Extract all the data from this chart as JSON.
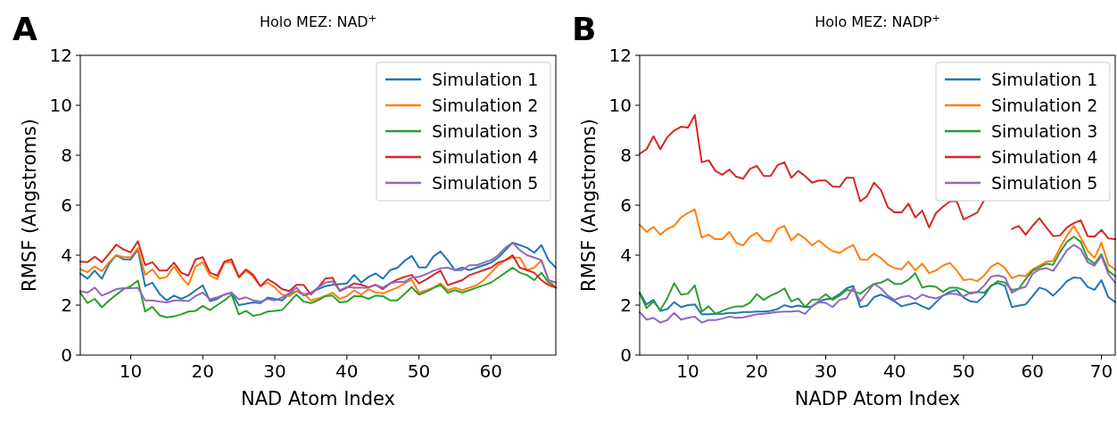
{
  "chart_data": [
    {
      "type": "line",
      "title": "Holo MEZ: NAD$^{+}$",
      "xlabel": "NAD Atom Index",
      "ylabel": "RMSF (Angstroms)",
      "annotations": [
        "A"
      ],
      "xlim": [
        3,
        69
      ],
      "ylim": [
        0,
        12
      ],
      "xticks": [
        10,
        20,
        30,
        40,
        50,
        60
      ],
      "yticks": [
        0,
        2,
        4,
        6,
        8,
        10,
        12
      ],
      "legend": "top right",
      "line_style": "solid",
      "x": [
        3,
        4,
        5,
        6,
        7,
        8,
        9,
        10,
        11,
        12,
        13,
        14,
        15,
        16,
        17,
        18,
        19,
        20,
        21,
        22,
        23,
        24,
        25,
        26,
        27,
        28,
        29,
        30,
        31,
        32,
        33,
        34,
        35,
        36,
        37,
        38,
        39,
        40,
        41,
        42,
        43,
        44,
        45,
        46,
        47,
        48,
        49,
        50,
        51,
        52,
        53,
        54,
        55,
        56,
        57,
        58,
        59,
        60,
        61,
        62,
        63,
        64,
        65,
        66,
        67,
        68,
        69
      ],
      "series": [
        {
          "name": "Simulation 1",
          "color": "#1f77b4",
          "values": [
            3.27,
            3.06,
            3.38,
            3.06,
            3.66,
            4.0,
            3.83,
            3.83,
            4.23,
            2.76,
            2.9,
            2.45,
            2.19,
            2.38,
            2.25,
            2.38,
            2.59,
            2.79,
            2.16,
            2.25,
            2.42,
            2.5,
            2.0,
            2.05,
            2.11,
            2.08,
            2.3,
            2.25,
            2.19,
            2.45,
            2.56,
            2.42,
            2.5,
            2.64,
            2.76,
            2.81,
            2.84,
            2.87,
            3.21,
            2.9,
            3.13,
            3.27,
            3.06,
            3.4,
            3.49,
            3.77,
            3.97,
            3.51,
            3.51,
            3.94,
            4.15,
            3.8,
            3.4,
            3.5,
            3.4,
            3.5,
            3.6,
            3.7,
            3.9,
            4.2,
            4.5,
            4.4,
            4.3,
            4.1,
            4.4,
            3.8,
            3.5
          ]
        },
        {
          "name": "Simulation 2",
          "color": "#ff7f0e",
          "values": [
            3.43,
            3.32,
            3.55,
            3.36,
            3.72,
            4.0,
            3.92,
            3.92,
            4.28,
            3.21,
            3.43,
            3.06,
            3.13,
            3.55,
            3.13,
            2.81,
            3.55,
            3.72,
            3.18,
            3.04,
            3.7,
            3.72,
            3.1,
            3.38,
            3.13,
            2.76,
            2.9,
            2.7,
            2.42,
            2.36,
            2.56,
            2.47,
            2.19,
            2.27,
            2.36,
            2.5,
            2.25,
            2.36,
            2.59,
            2.42,
            2.64,
            2.5,
            2.47,
            2.59,
            2.7,
            2.87,
            3.02,
            2.5,
            2.59,
            2.7,
            2.87,
            2.6,
            2.7,
            2.6,
            2.7,
            2.8,
            3.0,
            3.3,
            3.6,
            3.8,
            3.9,
            3.9,
            3.4,
            3.5,
            3.8,
            3.0,
            2.7
          ]
        },
        {
          "name": "Simulation 3",
          "color": "#2ca02c",
          "values": [
            2.5,
            2.08,
            2.25,
            1.91,
            2.19,
            2.42,
            2.64,
            2.76,
            2.98,
            1.74,
            1.93,
            1.59,
            1.51,
            1.55,
            1.63,
            1.74,
            1.77,
            1.97,
            1.8,
            2.0,
            2.19,
            2.42,
            1.63,
            1.77,
            1.57,
            1.63,
            1.74,
            1.77,
            1.8,
            2.11,
            2.42,
            2.14,
            2.08,
            2.19,
            2.36,
            2.38,
            2.11,
            2.14,
            2.36,
            2.36,
            2.25,
            2.38,
            2.36,
            2.19,
            2.19,
            2.45,
            2.72,
            2.42,
            2.53,
            2.68,
            2.81,
            2.5,
            2.6,
            2.5,
            2.6,
            2.7,
            2.8,
            2.9,
            3.1,
            3.3,
            3.5,
            3.3,
            3.2,
            3.0,
            3.3,
            2.9,
            2.7
          ]
        },
        {
          "name": "Simulation 4",
          "color": "#d62728",
          "values": [
            3.74,
            3.72,
            3.94,
            3.72,
            4.06,
            4.42,
            4.23,
            4.11,
            4.56,
            3.6,
            3.72,
            3.38,
            3.38,
            3.7,
            3.3,
            3.18,
            3.83,
            3.92,
            3.3,
            3.18,
            3.74,
            3.83,
            3.13,
            3.43,
            3.21,
            2.76,
            3.04,
            2.87,
            2.64,
            2.56,
            2.81,
            2.81,
            2.42,
            2.7,
            3.06,
            3.1,
            2.56,
            2.7,
            2.87,
            2.81,
            2.72,
            2.81,
            2.64,
            2.87,
            3.02,
            3.13,
            3.21,
            2.87,
            3.02,
            3.21,
            3.38,
            2.8,
            2.9,
            3.0,
            3.2,
            3.3,
            3.4,
            3.5,
            3.7,
            3.8,
            4.0,
            3.5,
            3.4,
            3.3,
            3.0,
            2.8,
            2.7
          ]
        },
        {
          "name": "Simulation 5",
          "color": "#9467bd",
          "values": [
            2.56,
            2.5,
            2.7,
            2.38,
            2.5,
            2.64,
            2.68,
            2.68,
            2.7,
            2.19,
            2.19,
            2.14,
            2.11,
            2.19,
            2.19,
            2.16,
            2.36,
            2.5,
            2.23,
            2.31,
            2.42,
            2.5,
            2.23,
            2.31,
            2.19,
            2.14,
            2.25,
            2.19,
            2.31,
            2.47,
            2.7,
            2.38,
            2.47,
            2.7,
            2.9,
            2.95,
            2.59,
            2.72,
            2.7,
            2.7,
            2.7,
            2.81,
            2.7,
            2.87,
            2.93,
            2.93,
            3.1,
            3.13,
            3.24,
            3.38,
            3.47,
            3.5,
            3.4,
            3.4,
            3.6,
            3.6,
            3.7,
            3.8,
            4.0,
            4.3,
            4.5,
            4.2,
            4.0,
            3.9,
            3.8,
            3.0,
            2.9
          ]
        }
      ]
    },
    {
      "type": "line",
      "title": "Holo MEZ: NADP$^{+}$",
      "xlabel": "NADP Atom Index",
      "ylabel": "RMSF (Angstroms)",
      "annotations": [
        "B"
      ],
      "xlim": [
        3,
        72
      ],
      "ylim": [
        0,
        12
      ],
      "xticks": [
        10,
        20,
        30,
        40,
        50,
        60,
        70
      ],
      "yticks": [
        0,
        2,
        4,
        6,
        8,
        10,
        12
      ],
      "legend": "top right",
      "line_style": "solid",
      "x": [
        3,
        4,
        5,
        6,
        7,
        8,
        9,
        10,
        11,
        12,
        13,
        14,
        15,
        16,
        17,
        18,
        19,
        20,
        21,
        22,
        23,
        24,
        25,
        26,
        27,
        28,
        29,
        30,
        31,
        32,
        33,
        34,
        35,
        36,
        37,
        38,
        39,
        40,
        41,
        42,
        43,
        44,
        45,
        46,
        47,
        48,
        49,
        50,
        51,
        52,
        53,
        54,
        55,
        56,
        57,
        58,
        59,
        60,
        61,
        62,
        63,
        64,
        65,
        66,
        67,
        68,
        69,
        70,
        71,
        72
      ],
      "series": [
        {
          "name": "Simulation 1",
          "color": "#1f77b4",
          "values": [
            2.5,
            2.03,
            2.21,
            1.77,
            1.84,
            2.12,
            1.92,
            2.0,
            2.03,
            1.63,
            1.63,
            1.65,
            1.65,
            1.69,
            1.69,
            1.72,
            1.72,
            1.74,
            1.74,
            1.77,
            1.84,
            2.0,
            1.92,
            1.98,
            1.92,
            1.95,
            2.15,
            2.23,
            2.27,
            2.44,
            2.67,
            2.77,
            1.92,
            1.98,
            2.32,
            2.42,
            2.3,
            2.15,
            1.95,
            2.03,
            2.09,
            1.95,
            1.84,
            2.12,
            2.38,
            2.53,
            2.61,
            2.3,
            2.15,
            2.12,
            2.38,
            2.79,
            2.88,
            2.77,
            1.92,
            1.98,
            2.03,
            2.35,
            2.7,
            2.61,
            2.38,
            2.65,
            2.96,
            3.11,
            3.08,
            2.73,
            2.61,
            3.0,
            2.32,
            2.12
          ]
        },
        {
          "name": "Simulation 2",
          "color": "#ff7f0e",
          "values": [
            5.22,
            4.93,
            5.13,
            4.82,
            5.05,
            5.17,
            5.51,
            5.69,
            5.83,
            4.7,
            4.82,
            4.64,
            4.64,
            4.93,
            4.5,
            4.39,
            4.74,
            4.9,
            4.59,
            4.55,
            5.05,
            5.17,
            4.59,
            4.85,
            4.67,
            4.39,
            4.59,
            4.35,
            4.16,
            4.09,
            4.27,
            4.41,
            3.83,
            3.81,
            4.06,
            3.89,
            3.62,
            3.48,
            3.43,
            3.74,
            3.39,
            3.66,
            3.28,
            3.39,
            3.58,
            3.69,
            3.39,
            3.0,
            3.04,
            2.96,
            3.19,
            3.54,
            3.69,
            3.48,
            3.08,
            3.19,
            3.16,
            3.43,
            3.58,
            3.74,
            3.77,
            4.3,
            4.78,
            5.17,
            4.7,
            4.18,
            3.89,
            4.5,
            3.62,
            3.43
          ]
        },
        {
          "name": "Simulation 3",
          "color": "#2ca02c",
          "values": [
            2.46,
            1.88,
            2.15,
            1.8,
            2.27,
            2.88,
            2.42,
            2.46,
            2.79,
            1.74,
            1.95,
            1.65,
            1.77,
            1.88,
            1.95,
            1.95,
            2.09,
            2.44,
            2.21,
            2.38,
            2.5,
            2.67,
            2.15,
            2.27,
            1.92,
            2.21,
            2.23,
            2.44,
            2.21,
            2.38,
            2.61,
            2.56,
            2.46,
            2.67,
            2.85,
            2.9,
            3.04,
            2.85,
            2.85,
            3.02,
            3.28,
            2.7,
            2.77,
            2.73,
            2.53,
            2.7,
            2.7,
            2.61,
            2.46,
            2.53,
            2.5,
            2.77,
            2.96,
            2.9,
            2.61,
            2.65,
            3.04,
            3.37,
            3.51,
            3.66,
            3.62,
            4.12,
            4.53,
            4.74,
            4.53,
            3.86,
            3.66,
            4.04,
            3.37,
            3.16
          ]
        },
        {
          "name": "Simulation 4",
          "color": "#d62728",
          "values": [
            8.06,
            8.24,
            8.76,
            8.24,
            8.72,
            8.99,
            9.14,
            9.11,
            9.61,
            7.72,
            7.8,
            7.37,
            7.22,
            7.43,
            7.14,
            7.06,
            7.45,
            7.57,
            7.17,
            7.17,
            7.6,
            7.72,
            7.1,
            7.37,
            7.17,
            6.9,
            6.99,
            6.99,
            6.75,
            6.73,
            7.1,
            7.1,
            6.15,
            6.36,
            6.9,
            6.61,
            5.92,
            5.71,
            5.71,
            6.06,
            5.51,
            5.78,
            5.11,
            5.69,
            5.94,
            6.15,
            6.17,
            5.43,
            5.57,
            5.71,
            6.21,
            null,
            null,
            null,
            5.05,
            5.17,
            4.82,
            5.17,
            5.48,
            5.11,
            4.76,
            4.79,
            5.11,
            5.28,
            5.4,
            4.76,
            4.74,
            5.01,
            4.67,
            4.64
          ]
        },
        {
          "name": "Simulation 5",
          "color": "#9467bd",
          "values": [
            1.72,
            1.42,
            1.49,
            1.3,
            1.4,
            1.69,
            1.42,
            1.49,
            1.54,
            1.3,
            1.4,
            1.4,
            1.46,
            1.54,
            1.49,
            1.51,
            1.57,
            1.63,
            1.65,
            1.69,
            1.72,
            1.74,
            1.74,
            1.77,
            1.65,
            1.95,
            2.12,
            2.09,
            1.92,
            2.21,
            2.27,
            2.7,
            2.15,
            2.5,
            2.85,
            2.67,
            2.38,
            2.21,
            2.32,
            2.38,
            2.23,
            2.42,
            2.32,
            2.27,
            2.38,
            2.46,
            2.44,
            2.35,
            2.5,
            2.53,
            2.79,
            3.14,
            3.19,
            3.11,
            2.5,
            2.65,
            2.73,
            3.25,
            3.43,
            3.48,
            3.37,
            3.77,
            4.2,
            4.41,
            4.24,
            3.72,
            3.58,
            3.97,
            3.25,
            2.9
          ]
        }
      ]
    }
  ]
}
